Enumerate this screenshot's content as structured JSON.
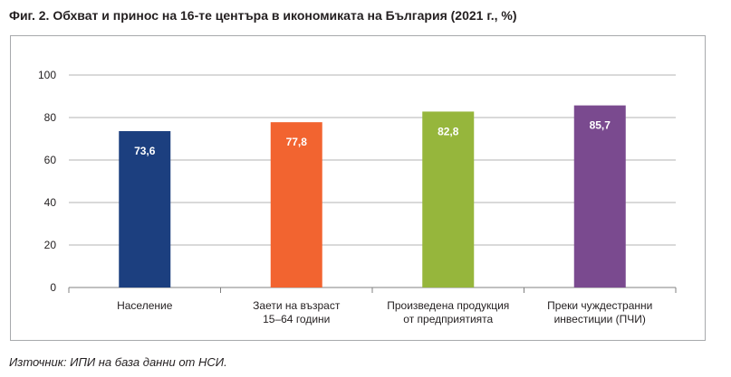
{
  "figure": {
    "title": "Фиг. 2. Обхват и принос на 16-те центъра в икономиката на България (2021 г., %)",
    "source": "Източник: ИПИ на база данни от НСИ."
  },
  "chart_data": {
    "type": "bar",
    "title": "Фиг. 2. Обхват и принос на 16-те центъра в икономиката на България (2021 г., %)",
    "xlabel": "",
    "ylabel": "",
    "ylim": [
      0,
      100
    ],
    "yticks": [
      0,
      20,
      40,
      60,
      80,
      100
    ],
    "grid": true,
    "legend": "none",
    "categories": [
      [
        "Население"
      ],
      [
        "Заети на възраст",
        "15–64 години"
      ],
      [
        "Произведена продукция",
        "от предприятията"
      ],
      [
        "Преки чуждестранни",
        "инвестиции (ПЧИ)"
      ]
    ],
    "values": [
      73.6,
      77.8,
      82.8,
      85.7
    ],
    "value_labels": [
      "73,6",
      "77,8",
      "82,8",
      "85,7"
    ],
    "colors": [
      "#1c3f7f",
      "#f26430",
      "#96b63c",
      "#7a4a8f"
    ],
    "grid_color": "#b3b3b3"
  }
}
